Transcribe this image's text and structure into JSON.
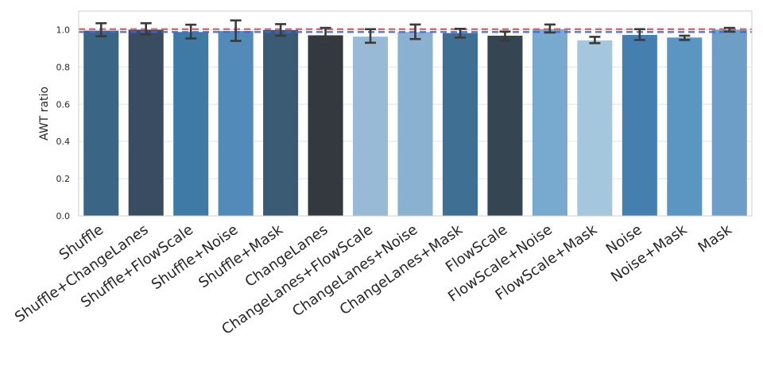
{
  "chart_data": {
    "type": "bar",
    "title": "",
    "xlabel": "",
    "ylabel": "AWT ratio",
    "ylim": [
      0,
      1.1
    ],
    "yticks": [
      0.0,
      0.2,
      0.4,
      0.6,
      0.8,
      1.0
    ],
    "ytick_labels": [
      "0.0",
      "0.2",
      "0.4",
      "0.6",
      "0.8",
      "1.0"
    ],
    "grid": true,
    "categories": [
      "Shuffle",
      "Shuffle+ChangeLanes",
      "Shuffle+FlowScale",
      "Shuffle+Noise",
      "Shuffle+Mask",
      "ChangeLanes",
      "ChangeLanes+FlowScale",
      "ChangeLanes+Noise",
      "ChangeLanes+Mask",
      "FlowScale",
      "FlowScale+Noise",
      "FlowScale+Mask",
      "Noise",
      "Noise+Mask",
      "Mask"
    ],
    "values": [
      0.995,
      1.0,
      0.988,
      0.993,
      0.998,
      0.97,
      0.963,
      0.988,
      0.982,
      0.968,
      1.003,
      0.943,
      0.972,
      0.958,
      1.0
    ],
    "error_low": [
      0.965,
      0.975,
      0.953,
      0.94,
      0.968,
      0.935,
      0.93,
      0.95,
      0.958,
      0.942,
      0.985,
      0.928,
      0.945,
      0.945,
      0.99
    ],
    "error_high": [
      1.035,
      1.035,
      1.027,
      1.05,
      1.03,
      1.01,
      1.003,
      1.028,
      1.005,
      0.99,
      1.028,
      0.962,
      1.003,
      0.968,
      1.01
    ],
    "bar_colors": [
      "#3b6585",
      "#3a4d60",
      "#3e7aa3",
      "#528ab9",
      "#3b5a74",
      "#33393f",
      "#98bad6",
      "#8ab2d0",
      "#3f6f92",
      "#364552",
      "#78a9cf",
      "#a4c7dd",
      "#447fb0",
      "#5b96c2",
      "#6c9ec6"
    ],
    "reference_lines": [
      {
        "name": "red-reference",
        "y": 1.003,
        "color": "#e05a5a"
      },
      {
        "name": "blue-reference",
        "y": 0.988,
        "color": "#4f5fe0"
      }
    ]
  }
}
